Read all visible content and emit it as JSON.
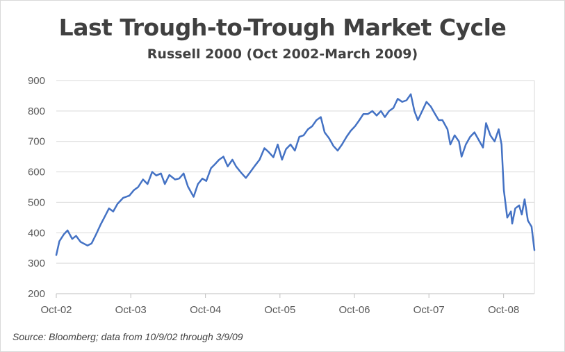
{
  "chart_data": {
    "type": "line",
    "title": "Last Trough-to-Trough Market Cycle",
    "subtitle": "Russell 2000 (Oct 2002-March 2009)",
    "xlabel": "",
    "ylabel": "",
    "ylim": [
      200,
      900
    ],
    "xlim": [
      "2002-10-09",
      "2009-03-09"
    ],
    "yticks": [
      "200",
      "300",
      "400",
      "500",
      "600",
      "700",
      "800",
      "900"
    ],
    "xticks": [
      {
        "date": "2002-10-09",
        "label": "Oct-02"
      },
      {
        "date": "2003-10-09",
        "label": "Oct-03"
      },
      {
        "date": "2004-10-09",
        "label": "Oct-04"
      },
      {
        "date": "2005-10-09",
        "label": "Oct-05"
      },
      {
        "date": "2006-10-09",
        "label": "Oct-06"
      },
      {
        "date": "2007-10-09",
        "label": "Oct-07"
      },
      {
        "date": "2008-10-09",
        "label": "Oct-08"
      }
    ],
    "grid": true,
    "legend": "none",
    "line_color": "#4472c4",
    "series": [
      {
        "x": [
          "2002-10-09",
          "2002-10-24",
          "2002-11-15",
          "2002-12-03",
          "2002-12-26",
          "2003-01-14",
          "2003-02-05",
          "2003-03-11",
          "2003-03-31",
          "2003-04-22",
          "2003-05-15",
          "2003-06-05",
          "2003-06-24",
          "2003-07-15",
          "2003-08-05",
          "2003-09-02",
          "2003-10-02",
          "2003-10-24",
          "2003-11-14",
          "2003-12-08",
          "2003-12-30",
          "2004-01-22",
          "2004-02-11",
          "2004-03-05",
          "2004-03-24",
          "2004-04-15",
          "2004-05-13",
          "2004-06-02",
          "2004-06-24",
          "2004-07-15",
          "2004-08-12",
          "2004-09-02",
          "2004-09-24",
          "2004-10-13",
          "2004-11-05",
          "2004-11-24",
          "2004-12-15",
          "2005-01-05",
          "2005-01-26",
          "2005-02-18",
          "2005-03-08",
          "2005-04-01",
          "2005-04-25",
          "2005-05-17",
          "2005-06-08",
          "2005-07-01",
          "2005-07-25",
          "2005-08-15",
          "2005-09-07",
          "2005-09-28",
          "2005-10-19",
          "2005-11-08",
          "2005-11-30",
          "2005-12-21",
          "2006-01-12",
          "2006-02-02",
          "2006-02-23",
          "2006-03-16",
          "2006-04-06",
          "2006-04-27",
          "2006-05-16",
          "2006-06-07",
          "2006-06-28",
          "2006-07-19",
          "2006-08-09",
          "2006-08-31",
          "2006-09-21",
          "2006-10-12",
          "2006-11-02",
          "2006-11-22",
          "2006-12-14",
          "2007-01-05",
          "2007-01-26",
          "2007-02-16",
          "2007-03-07",
          "2007-03-28",
          "2007-04-18",
          "2007-05-09",
          "2007-05-31",
          "2007-06-21",
          "2007-07-12",
          "2007-07-30",
          "2007-08-16",
          "2007-09-06",
          "2007-09-27",
          "2007-10-18",
          "2007-11-08",
          "2007-11-26",
          "2007-12-14",
          "2008-01-08",
          "2008-01-22",
          "2008-02-12",
          "2008-03-04",
          "2008-03-17",
          "2008-04-07",
          "2008-04-28",
          "2008-05-19",
          "2008-06-09",
          "2008-06-30",
          "2008-07-15",
          "2008-08-05",
          "2008-08-26",
          "2008-09-15",
          "2008-09-29",
          "2008-10-10",
          "2008-10-27",
          "2008-11-14",
          "2008-11-20",
          "2008-12-05",
          "2008-12-24",
          "2009-01-06",
          "2009-01-20",
          "2009-02-05",
          "2009-02-23",
          "2009-03-09"
        ],
        "values": [
          327,
          372,
          395,
          408,
          380,
          390,
          370,
          358,
          365,
          395,
          428,
          455,
          480,
          470,
          495,
          515,
          522,
          540,
          550,
          575,
          560,
          600,
          588,
          595,
          560,
          590,
          575,
          578,
          595,
          552,
          518,
          560,
          578,
          570,
          612,
          625,
          640,
          650,
          618,
          640,
          618,
          598,
          580,
          600,
          620,
          640,
          678,
          665,
          648,
          690,
          640,
          675,
          690,
          670,
          715,
          720,
          740,
          750,
          770,
          780,
          730,
          710,
          685,
          670,
          690,
          715,
          735,
          750,
          770,
          790,
          790,
          800,
          785,
          800,
          780,
          800,
          810,
          840,
          830,
          835,
          855,
          800,
          770,
          800,
          830,
          815,
          790,
          770,
          770,
          740,
          690,
          720,
          700,
          650,
          690,
          715,
          730,
          705,
          680,
          760,
          720,
          700,
          740,
          690,
          540,
          450,
          470,
          430,
          480,
          490,
          460,
          510,
          440,
          420,
          343
        ]
      }
    ]
  },
  "source_text": "Source: Bloomberg; data from 10/9/02 through 3/9/09"
}
